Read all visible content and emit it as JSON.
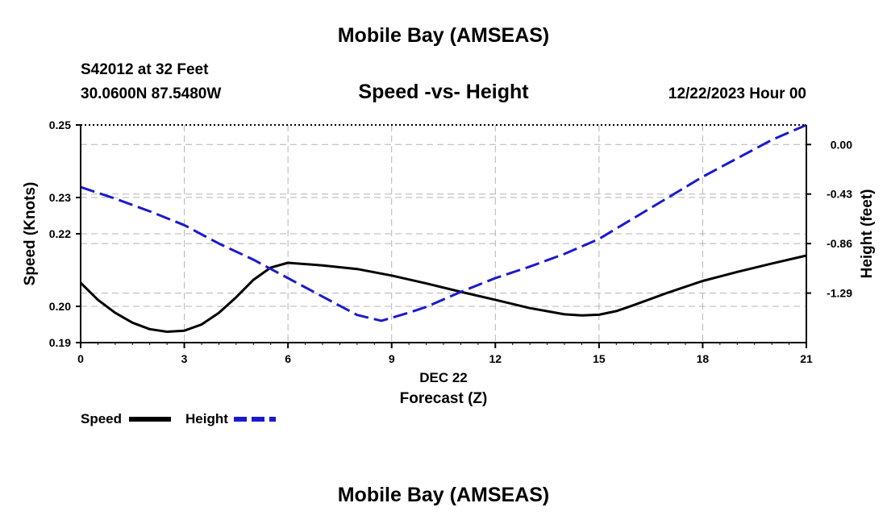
{
  "header": {
    "title": "Mobile Bay (AMSEAS)",
    "station": "S42012 at 32 Feet",
    "coords": "30.0600N  87.5480W",
    "subtitle": "Speed -vs- Height",
    "date": "12/22/2023 Hour 00"
  },
  "footer": {
    "title": "Mobile Bay (AMSEAS)"
  },
  "legend": {
    "speed_label": "Speed",
    "height_label": "Height"
  },
  "colors": {
    "speed": "#000000",
    "height": "#1a1acc",
    "grid": "#b4b4b4"
  },
  "chart_data": {
    "type": "line",
    "title": "Speed -vs- Height",
    "xlabel": "Forecast (Z)",
    "xlabel_date": "DEC 22",
    "ylabel_left": "Speed (Knots)",
    "ylabel_right": "Height (feet)",
    "xlim": [
      0,
      21
    ],
    "ylim_left": [
      0.19,
      0.25
    ],
    "ylim_right": [
      -1.72,
      0.17
    ],
    "x_ticks": [
      0,
      3,
      6,
      9,
      12,
      15,
      18,
      21
    ],
    "x_tick_labels": [
      "0",
      "3",
      "6",
      "9",
      "12",
      "15",
      "18",
      "21"
    ],
    "y_left_ticks": [
      0.19,
      0.2,
      0.22,
      0.23,
      0.25
    ],
    "y_left_tick_labels": [
      "0.19",
      "0.20",
      "0.22",
      "0.23",
      "0.25"
    ],
    "y_right_ticks": [
      0.0,
      -0.43,
      -0.86,
      -1.29
    ],
    "y_right_tick_labels": [
      "0.00",
      "-0.43",
      "-0.86",
      "-1.29"
    ],
    "series": [
      {
        "name": "Speed",
        "axis": "left",
        "style": "solid",
        "x": [
          0,
          0.5,
          1,
          1.5,
          2,
          2.5,
          3,
          3.5,
          4,
          4.5,
          5,
          5.5,
          6,
          7,
          8,
          9,
          10,
          11,
          12,
          13,
          14,
          14.5,
          15,
          15.5,
          16,
          17,
          18,
          19,
          20,
          21
        ],
        "values": [
          0.2065,
          0.2018,
          0.1982,
          0.1955,
          0.1937,
          0.193,
          0.1933,
          0.195,
          0.1982,
          0.2025,
          0.2073,
          0.2107,
          0.212,
          0.2113,
          0.2103,
          0.2085,
          0.2063,
          0.204,
          0.2018,
          0.1995,
          0.1978,
          0.1975,
          0.1977,
          0.1987,
          0.2003,
          0.2038,
          0.207,
          0.2095,
          0.2118,
          0.214
        ]
      },
      {
        "name": "Height",
        "axis": "right",
        "style": "dashed",
        "x": [
          0,
          1,
          2,
          3,
          4,
          5,
          6,
          7,
          8,
          8.7,
          9.5,
          10,
          11,
          12,
          13,
          14,
          15,
          16,
          17,
          18,
          19,
          20,
          21
        ],
        "values": [
          -0.37,
          -0.47,
          -0.58,
          -0.7,
          -0.86,
          -1.0,
          -1.16,
          -1.32,
          -1.48,
          -1.53,
          -1.46,
          -1.41,
          -1.28,
          -1.16,
          -1.06,
          -0.95,
          -0.82,
          -0.64,
          -0.46,
          -0.28,
          -0.12,
          0.04,
          0.17
        ]
      }
    ]
  }
}
